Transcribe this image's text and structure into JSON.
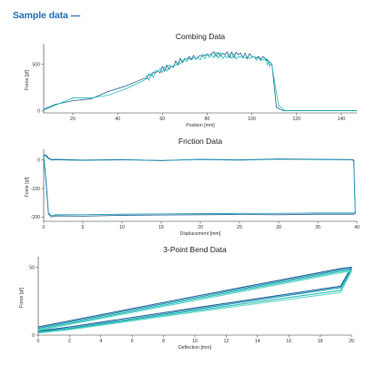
{
  "header": {
    "title": "Sample data —"
  },
  "colors": {
    "accent": "#1a6fb5",
    "series_dark": "#1f5f94",
    "series_teal": "#24bfb2",
    "series_mid": "#1596b5"
  },
  "chart_data": [
    {
      "type": "line",
      "title": "Combing Data",
      "xlabel": "Position [mm]",
      "ylabel": "Force [gf]",
      "xlim": [
        7,
        147
      ],
      "ylim": [
        -20,
        680
      ],
      "xticks": [
        20,
        40,
        60,
        80,
        100,
        120,
        140
      ],
      "yticks": [
        0,
        500
      ],
      "grid": false,
      "series": [
        {
          "color": "#1f5f94",
          "x": [
            7,
            12,
            20,
            28,
            36,
            44,
            52,
            58,
            64,
            70,
            76,
            82,
            88,
            94,
            100,
            106,
            109,
            111,
            114,
            147
          ],
          "y": [
            20,
            70,
            110,
            130,
            210,
            270,
            350,
            430,
            480,
            560,
            580,
            610,
            600,
            600,
            580,
            560,
            500,
            40,
            5,
            5
          ]
        },
        {
          "color": "#24bfb2",
          "x": [
            7,
            12,
            20,
            28,
            36,
            44,
            52,
            58,
            64,
            70,
            76,
            82,
            88,
            94,
            100,
            106,
            109,
            112,
            115,
            147
          ],
          "y": [
            10,
            60,
            140,
            140,
            170,
            240,
            330,
            420,
            470,
            540,
            570,
            600,
            590,
            580,
            570,
            540,
            480,
            60,
            3,
            3
          ]
        }
      ]
    },
    {
      "type": "line",
      "title": "Friction Data",
      "xlabel": "Displacement [mm]",
      "ylabel": "Force [gf]",
      "xlim": [
        0,
        40
      ],
      "ylim": [
        -215,
        25
      ],
      "xticks": [
        0,
        5,
        10,
        15,
        20,
        25,
        30,
        35,
        40
      ],
      "yticks": [
        0,
        -100,
        -200
      ],
      "grid": false,
      "series": [
        {
          "color": "#1f5f94",
          "x": [
            0,
            0.3,
            0.6,
            1.0,
            1.5,
            5,
            10,
            15,
            20,
            25,
            30,
            35,
            39.3,
            39.6,
            39.8,
            39.6,
            35,
            30,
            25,
            20,
            15,
            10,
            5,
            1.5,
            1.0,
            0.6,
            0.3,
            0
          ],
          "y": [
            18,
            18,
            8,
            2,
            3,
            0,
            2,
            -2,
            3,
            1,
            4,
            3,
            2,
            0,
            -188,
            -190,
            -190,
            -192,
            -191,
            -192,
            -193,
            -194,
            -197,
            -196,
            -200,
            -190,
            -80,
            15
          ]
        },
        {
          "color": "#1596b5",
          "x": [
            0,
            0.3,
            0.6,
            1.0,
            1.5,
            5,
            10,
            15,
            20,
            25,
            30,
            35,
            39.3,
            39.6,
            39.8,
            39.6,
            35,
            30,
            25,
            20,
            15,
            10,
            5,
            1.5,
            1.0,
            0.6,
            0.3,
            0
          ],
          "y": [
            15,
            14,
            5,
            0,
            1,
            -1,
            1,
            -1,
            2,
            0,
            3,
            2,
            1,
            -2,
            -185,
            -186,
            -186,
            -187,
            -187,
            -188,
            -189,
            -190,
            -192,
            -192,
            -195,
            -185,
            -70,
            12
          ]
        }
      ]
    },
    {
      "type": "line",
      "title": "3-Point Bend Data",
      "xlabel": "Deflection [mm]",
      "ylabel": "Force [gf]",
      "xlim": [
        0,
        20
      ],
      "ylim": [
        0,
        55
      ],
      "xticks": [
        0,
        2,
        4,
        6,
        8,
        10,
        12,
        14,
        16,
        18,
        20
      ],
      "yticks": [
        0,
        50
      ],
      "grid": false,
      "series": [
        {
          "color": "#1f5f94",
          "x": [
            0,
            10,
            19.3,
            20,
            19.3,
            10,
            2,
            0
          ],
          "y": [
            6,
            28.5,
            49,
            50,
            36,
            20,
            6,
            3
          ]
        },
        {
          "color": "#1596b5",
          "x": [
            0,
            10,
            19.3,
            20,
            19.3,
            10,
            2,
            0
          ],
          "y": [
            5,
            27.5,
            48,
            49,
            35,
            19,
            5,
            2.5
          ]
        },
        {
          "color": "#24bfb2",
          "x": [
            0,
            10,
            19.3,
            20,
            19.3,
            10,
            2,
            0
          ],
          "y": [
            4,
            26.5,
            47,
            48,
            33,
            18,
            4.5,
            2
          ]
        },
        {
          "color": "#5fd6c8",
          "x": [
            0,
            10,
            19.3,
            20,
            19.3,
            10,
            2,
            0
          ],
          "y": [
            3.5,
            25.5,
            46,
            47,
            31.5,
            17,
            4,
            1.5
          ]
        }
      ]
    }
  ]
}
